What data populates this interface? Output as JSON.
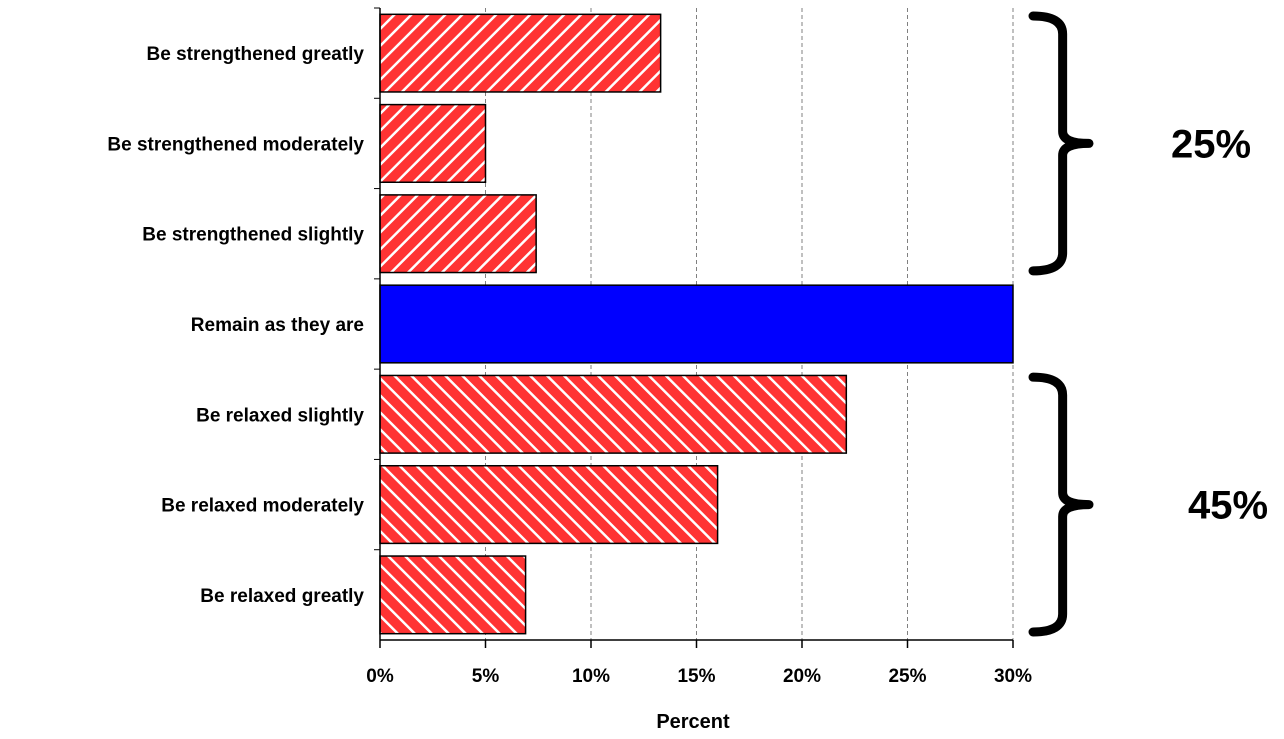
{
  "chart_data": {
    "type": "bar",
    "orientation": "horizontal",
    "categories": [
      "Be strengthened greatly",
      "Be strengthened moderately",
      "Be strengthened slightly",
      "Remain as they are",
      "Be relaxed slightly",
      "Be relaxed moderately",
      "Be relaxed greatly"
    ],
    "values": [
      13.3,
      5.0,
      7.4,
      30.0,
      22.1,
      16.0,
      6.9
    ],
    "bar_styles": [
      "hatch-back",
      "hatch-back",
      "hatch-back",
      "solid",
      "hatch-fwd",
      "hatch-fwd",
      "hatch-fwd"
    ],
    "colors": {
      "hatched_fill": "#ff3333",
      "hatch_stripe": "#ffffff",
      "solid_fill": "#0000ff",
      "outline": "#000000",
      "grid": "#808080"
    },
    "xlabel": "Percent",
    "ylabel": "",
    "xlim": [
      0,
      30
    ],
    "x_ticks": [
      0,
      5,
      10,
      15,
      20,
      25,
      30
    ],
    "x_tick_labels": [
      "0%",
      "5%",
      "10%",
      "15%",
      "20%",
      "25%",
      "30%"
    ],
    "grid": "vertical-dashed",
    "annotations": [
      {
        "text": "25%",
        "brace_covers": [
          "Be strengthened greatly",
          "Be strengthened moderately",
          "Be strengthened slightly"
        ]
      },
      {
        "text": "45%",
        "brace_covers": [
          "Be relaxed slightly",
          "Be relaxed moderately",
          "Be relaxed greatly"
        ]
      }
    ]
  }
}
